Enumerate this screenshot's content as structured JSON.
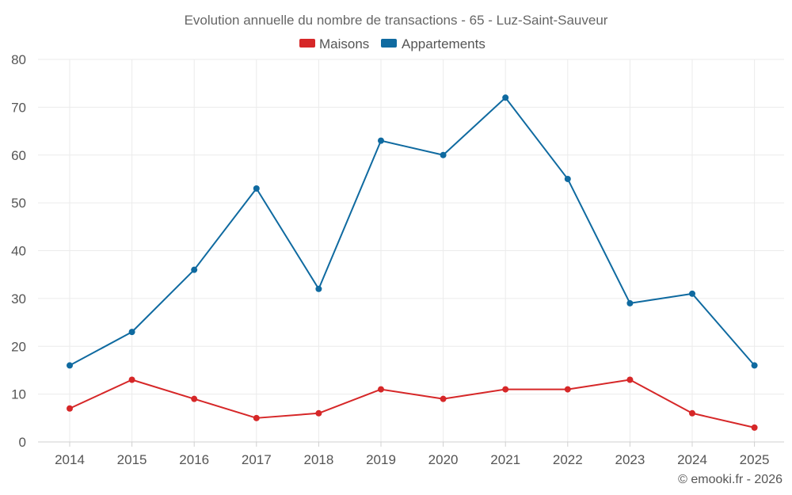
{
  "chart_data": {
    "type": "line",
    "title": "Evolution annuelle du nombre de transactions - 65 - Luz-Saint-Sauveur",
    "categories": [
      "2014",
      "2015",
      "2016",
      "2017",
      "2018",
      "2019",
      "2020",
      "2021",
      "2022",
      "2023",
      "2024",
      "2025"
    ],
    "series": [
      {
        "name": "Maisons",
        "color": "#d62728",
        "values": [
          7,
          13,
          9,
          5,
          6,
          11,
          9,
          11,
          11,
          13,
          6,
          3
        ]
      },
      {
        "name": "Appartements",
        "color": "#0f6aa0",
        "values": [
          16,
          23,
          36,
          53,
          32,
          63,
          60,
          72,
          55,
          29,
          31,
          16
        ]
      }
    ],
    "ylim": [
      0,
      80
    ],
    "yticks": [
      0,
      10,
      20,
      30,
      40,
      50,
      60,
      70,
      80
    ],
    "xlabel": "",
    "ylabel": "",
    "grid": true,
    "legend_position": "top-center"
  },
  "credit": "© emooki.fr - 2026"
}
